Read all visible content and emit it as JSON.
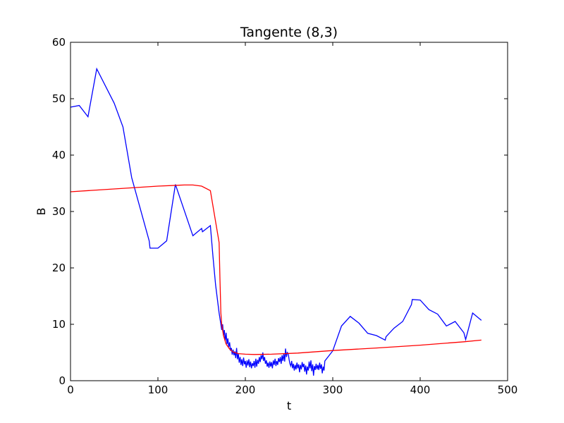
{
  "chart_data": {
    "type": "line",
    "title": "Tangente (8,3)",
    "xlabel": "t",
    "ylabel": "B",
    "xlim": [
      0,
      500
    ],
    "ylim": [
      0,
      60
    ],
    "xticks": [
      0,
      100,
      200,
      300,
      400,
      500
    ],
    "yticks": [
      0,
      10,
      20,
      30,
      40,
      50,
      60
    ],
    "grid": false,
    "legend": "none",
    "series": [
      {
        "color": "#0000ff",
        "points": [
          [
            0,
            48.5
          ],
          [
            10,
            48.8
          ],
          [
            20,
            46.8
          ],
          [
            30,
            55.3
          ],
          [
            50,
            49.2
          ],
          [
            60,
            45.0
          ],
          [
            70,
            36.0
          ],
          [
            90,
            24.8
          ],
          [
            91,
            23.5
          ],
          [
            100,
            23.5
          ],
          [
            110,
            24.8
          ],
          [
            120,
            34.8
          ],
          [
            140,
            25.7
          ],
          [
            150,
            27.0
          ],
          [
            151,
            26.4
          ],
          [
            160,
            27.5
          ],
          [
            163,
            22.0
          ],
          [
            166,
            17.0
          ],
          [
            168,
            14.5
          ],
          [
            170,
            12.0
          ],
          [
            172,
            10.0
          ],
          [
            173,
            9.0
          ],
          [
            174,
            10.0
          ],
          [
            175,
            8.0
          ],
          [
            176,
            9.0
          ],
          [
            177,
            7.0
          ],
          [
            178,
            8.5
          ],
          [
            179,
            6.5
          ],
          [
            180,
            7.5
          ],
          [
            181,
            6.0
          ],
          [
            182,
            6.8
          ],
          [
            183,
            5.3
          ],
          [
            184,
            5.8
          ],
          [
            185,
            4.6
          ],
          [
            186,
            5.5
          ],
          [
            187,
            4.5
          ],
          [
            188,
            5.2
          ],
          [
            189,
            4.0
          ],
          [
            190,
            5.8
          ],
          [
            191,
            3.8
          ],
          [
            192,
            4.8
          ],
          [
            193,
            3.2
          ],
          [
            194,
            4.2
          ],
          [
            195,
            2.8
          ],
          [
            196,
            3.8
          ],
          [
            197,
            2.6
          ],
          [
            198,
            4.1
          ],
          [
            199,
            2.9
          ],
          [
            200,
            3.5
          ],
          [
            201,
            2.3
          ],
          [
            202,
            3.6
          ],
          [
            203,
            2.7
          ],
          [
            204,
            3.8
          ],
          [
            205,
            2.4
          ],
          [
            206,
            3.4
          ],
          [
            207,
            2.2
          ],
          [
            208,
            3.1
          ],
          [
            209,
            2.6
          ],
          [
            210,
            3.5
          ],
          [
            211,
            2.3
          ],
          [
            212,
            3.9
          ],
          [
            213,
            2.5
          ],
          [
            214,
            3.7
          ],
          [
            215,
            3.0
          ],
          [
            216,
            4.2
          ],
          [
            217,
            3.3
          ],
          [
            218,
            4.5
          ],
          [
            219,
            3.8
          ],
          [
            220,
            5.0
          ],
          [
            221,
            3.5
          ],
          [
            222,
            4.2
          ],
          [
            223,
            3.0
          ],
          [
            224,
            3.6
          ],
          [
            225,
            2.5
          ],
          [
            226,
            3.2
          ],
          [
            227,
            2.3
          ],
          [
            228,
            3.4
          ],
          [
            229,
            2.5
          ],
          [
            230,
            3.3
          ],
          [
            231,
            2.2
          ],
          [
            232,
            3.6
          ],
          [
            233,
            2.8
          ],
          [
            234,
            3.9
          ],
          [
            235,
            2.6
          ],
          [
            236,
            3.5
          ],
          [
            237,
            2.8
          ],
          [
            238,
            4.0
          ],
          [
            239,
            3.3
          ],
          [
            240,
            4.2
          ],
          [
            241,
            3.0
          ],
          [
            242,
            4.5
          ],
          [
            243,
            3.5
          ],
          [
            244,
            4.8
          ],
          [
            245,
            3.4
          ],
          [
            246,
            5.7
          ],
          [
            247,
            4.2
          ],
          [
            248,
            5.0
          ],
          [
            249,
            4.8
          ],
          [
            250,
            3.8
          ],
          [
            251,
            3.0
          ],
          [
            252,
            2.6
          ],
          [
            253,
            3.5
          ],
          [
            254,
            2.2
          ],
          [
            255,
            3.0
          ],
          [
            256,
            1.8
          ],
          [
            257,
            2.8
          ],
          [
            258,
            2.0
          ],
          [
            259,
            3.2
          ],
          [
            260,
            2.2
          ],
          [
            261,
            2.9
          ],
          [
            262,
            1.5
          ],
          [
            263,
            2.8
          ],
          [
            264,
            2.0
          ],
          [
            265,
            3.3
          ],
          [
            266,
            2.4
          ],
          [
            267,
            3.0
          ],
          [
            268,
            1.6
          ],
          [
            269,
            2.7
          ],
          [
            270,
            1.1
          ],
          [
            271,
            2.5
          ],
          [
            272,
            1.8
          ],
          [
            273,
            3.4
          ],
          [
            274,
            2.2
          ],
          [
            275,
            3.6
          ],
          [
            276,
            1.7
          ],
          [
            277,
            2.9
          ],
          [
            278,
            0.9
          ],
          [
            279,
            2.6
          ],
          [
            280,
            1.9
          ],
          [
            281,
            3.0
          ],
          [
            282,
            2.0
          ],
          [
            283,
            2.8
          ],
          [
            284,
            1.9
          ],
          [
            285,
            3.2
          ],
          [
            286,
            2.1
          ],
          [
            287,
            2.9
          ],
          [
            288,
            1.3
          ],
          [
            289,
            2.5
          ],
          [
            290,
            1.8
          ],
          [
            291,
            3.5
          ],
          [
            300,
            5.3
          ],
          [
            310,
            9.7
          ],
          [
            320,
            11.4
          ],
          [
            330,
            10.2
          ],
          [
            340,
            8.4
          ],
          [
            350,
            8.0
          ],
          [
            360,
            7.2
          ],
          [
            361,
            7.8
          ],
          [
            370,
            9.3
          ],
          [
            380,
            10.5
          ],
          [
            390,
            13.5
          ],
          [
            391,
            14.4
          ],
          [
            400,
            14.3
          ],
          [
            410,
            12.6
          ],
          [
            420,
            11.8
          ],
          [
            430,
            9.7
          ],
          [
            440,
            10.5
          ],
          [
            450,
            8.5
          ],
          [
            452,
            7.3
          ],
          [
            460,
            12.0
          ],
          [
            470,
            10.7
          ]
        ]
      },
      {
        "color": "#ff0000",
        "points": [
          [
            0,
            33.5
          ],
          [
            50,
            34.0
          ],
          [
            100,
            34.5
          ],
          [
            130,
            34.7
          ],
          [
            140,
            34.7
          ],
          [
            150,
            34.5
          ],
          [
            160,
            33.7
          ],
          [
            170,
            24.5
          ],
          [
            171,
            18.0
          ],
          [
            172,
            12.0
          ],
          [
            173,
            10.0
          ],
          [
            175,
            8.0
          ],
          [
            178,
            6.5
          ],
          [
            182,
            5.6
          ],
          [
            186,
            5.1
          ],
          [
            192,
            4.8
          ],
          [
            200,
            4.7
          ],
          [
            210,
            4.65
          ],
          [
            230,
            4.7
          ],
          [
            260,
            4.9
          ],
          [
            300,
            5.35
          ],
          [
            350,
            5.8
          ],
          [
            400,
            6.3
          ],
          [
            450,
            6.9
          ],
          [
            470,
            7.2
          ]
        ]
      }
    ]
  }
}
